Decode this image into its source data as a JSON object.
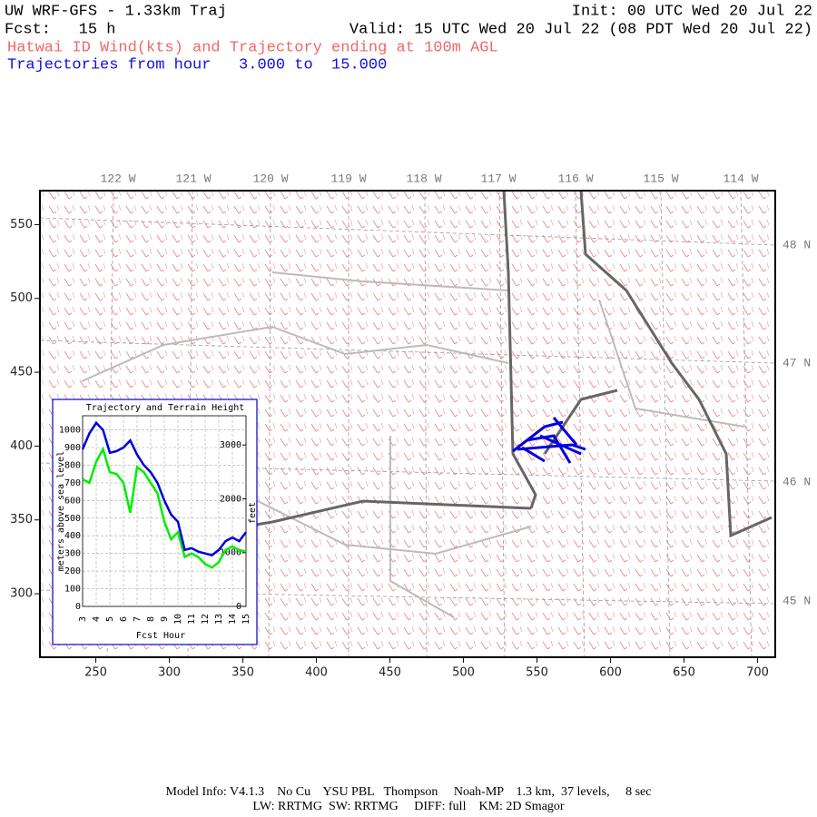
{
  "header": {
    "title": "UW WRF-GFS - 1.33km Traj",
    "init": "Init: 00 UTC Wed 20 Jul 22",
    "fcst": "Fcst:   15 h",
    "valid": "Valid: 15 UTC Wed 20 Jul 22 (08 PDT Wed 20 Jul 22)",
    "subtitle": "Hatwai ID Wind(kts) and Trajectory ending at 100m AGL",
    "trajectories": "Trajectories from hour   3.000 to  15.000"
  },
  "map": {
    "xlim": [
      212,
      712
    ],
    "ylim": [
      257,
      573
    ],
    "xticks": [
      250,
      300,
      350,
      400,
      450,
      500,
      550,
      600,
      650,
      700
    ],
    "yticks": [
      300,
      350,
      400,
      450,
      500,
      550
    ],
    "longitude_labels": [
      "122 W",
      "121 W",
      "120 W",
      "119 W",
      "118 W",
      "117 W",
      "116 W",
      "115 W",
      "114 W"
    ],
    "latitude_labels": [
      "48 N",
      "47 N",
      "46 N",
      "45 N"
    ]
  },
  "chart_data": {
    "type": "line",
    "title": "Trajectory and Terrain Height",
    "x_label": "Fcst Hour",
    "y_label": "meters above sea level",
    "y2_label": "feet",
    "x": [
      3,
      3.5,
      4,
      4.5,
      5,
      5.5,
      6,
      6.5,
      7,
      7.5,
      8,
      8.5,
      9,
      9.5,
      10,
      10.5,
      11,
      11.5,
      12,
      12.5,
      13,
      13.5,
      14,
      14.5,
      15
    ],
    "series": [
      {
        "color": "#0000dd",
        "values": [
          890,
          980,
          1040,
          1000,
          870,
          880,
          900,
          940,
          860,
          800,
          760,
          700,
          600,
          520,
          480,
          320,
          330,
          310,
          300,
          290,
          320,
          370,
          390,
          370,
          420
        ]
      },
      {
        "color": "#00ee00",
        "values": [
          720,
          700,
          820,
          890,
          760,
          750,
          700,
          530,
          790,
          760,
          700,
          640,
          480,
          380,
          420,
          280,
          300,
          280,
          240,
          220,
          250,
          320,
          340,
          320,
          310
        ]
      }
    ],
    "xlim": [
      3,
      15
    ],
    "xticks": [
      3,
      4,
      5,
      6,
      7,
      8,
      9,
      10,
      11,
      12,
      13,
      14,
      15
    ],
    "ylim": [
      0,
      1080
    ],
    "yticks": [
      0,
      100,
      200,
      300,
      400,
      500,
      600,
      700,
      800,
      900,
      1000
    ],
    "y2lim": [
      0,
      3543
    ],
    "y2ticks": [
      0,
      1000,
      2000,
      3000
    ],
    "grid": true
  },
  "footer": {
    "line1": "Model Info: V4.1.3    No Cu    YSU PBL   Thompson     Noah-MP    1.3 km,  37 levels,     8 sec",
    "line2": "LW: RRTMG  SW: RRTMG     DIFF: full    KM: 2D Smagor"
  }
}
